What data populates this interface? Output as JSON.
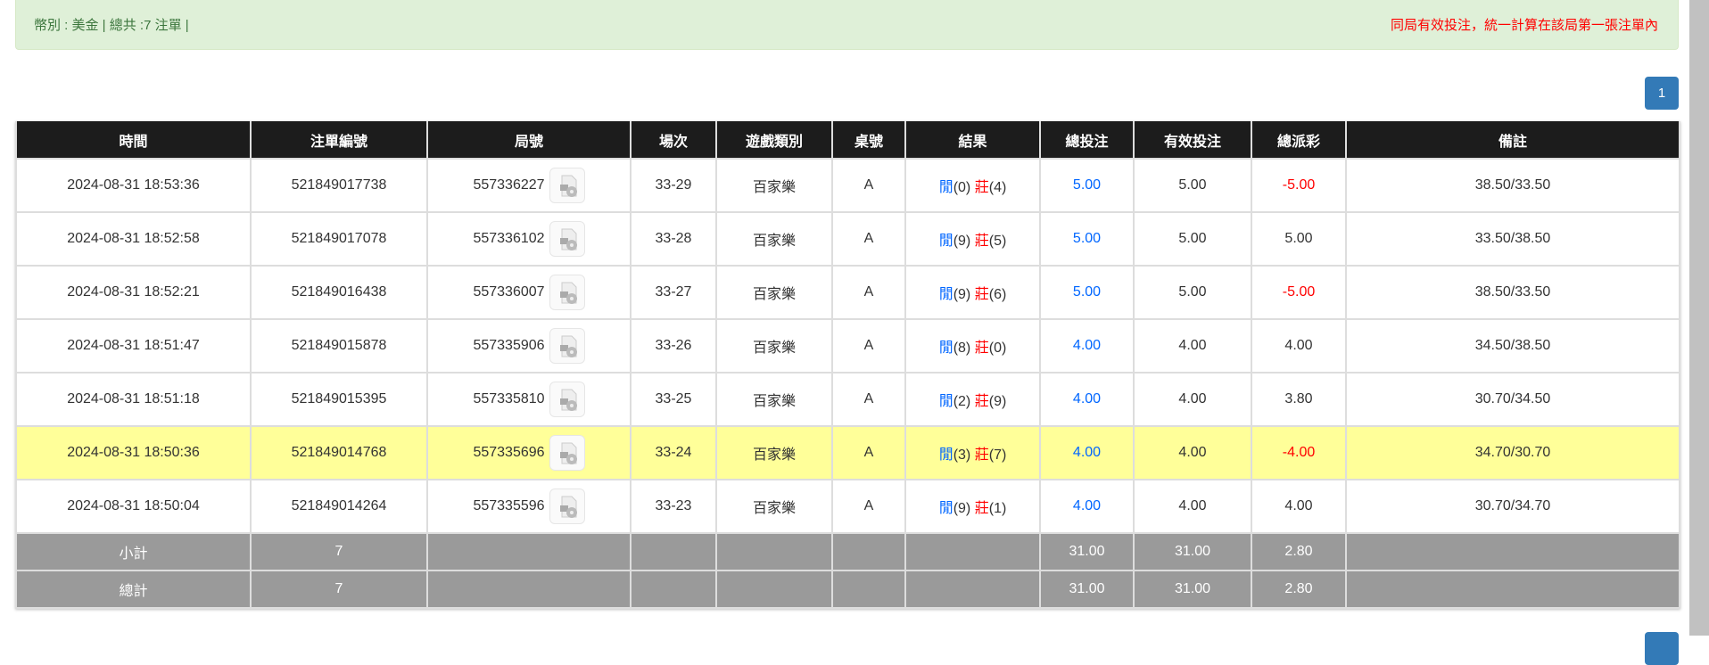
{
  "alert": {
    "summary": "幣別 : 美金 | 總共 :7 注單 |",
    "note": "同局有效投注，統一計算在該局第一張注單內"
  },
  "pagination": {
    "current": "1"
  },
  "colors": {
    "header": "#1c1c1c",
    "highlight": "#ffff99",
    "summary": "#9a9a9a",
    "positive": "#0066ff",
    "negative": "#ff0000"
  },
  "table": {
    "headers": [
      "時間",
      "注單編號",
      "局號",
      "場次",
      "遊戲類別",
      "桌號",
      "結果",
      "總投注",
      "有效投注",
      "總派彩",
      "備註"
    ],
    "rows": [
      {
        "time": "2024-08-31 18:53:36",
        "bet_id": "521849017738",
        "round": "557336227",
        "shoe": "33-29",
        "game": "百家樂",
        "table": "A",
        "player": "閒",
        "player_pts": "(0)",
        "banker": "莊",
        "banker_pts": "(4)",
        "bet": "5.00",
        "valid": "5.00",
        "payout": "-5.00",
        "payout_neg": true,
        "note": "38.50/33.50"
      },
      {
        "time": "2024-08-31 18:52:58",
        "bet_id": "521849017078",
        "round": "557336102",
        "shoe": "33-28",
        "game": "百家樂",
        "table": "A",
        "player": "閒",
        "player_pts": "(9)",
        "banker": "莊",
        "banker_pts": "(5)",
        "bet": "5.00",
        "valid": "5.00",
        "payout": "5.00",
        "payout_neg": false,
        "note": "33.50/38.50"
      },
      {
        "time": "2024-08-31 18:52:21",
        "bet_id": "521849016438",
        "round": "557336007",
        "shoe": "33-27",
        "game": "百家樂",
        "table": "A",
        "player": "閒",
        "player_pts": "(9)",
        "banker": "莊",
        "banker_pts": "(6)",
        "bet": "5.00",
        "valid": "5.00",
        "payout": "-5.00",
        "payout_neg": true,
        "note": "38.50/33.50"
      },
      {
        "time": "2024-08-31 18:51:47",
        "bet_id": "521849015878",
        "round": "557335906",
        "shoe": "33-26",
        "game": "百家樂",
        "table": "A",
        "player": "閒",
        "player_pts": "(8)",
        "banker": "莊",
        "banker_pts": "(0)",
        "bet": "4.00",
        "valid": "4.00",
        "payout": "4.00",
        "payout_neg": false,
        "note": "34.50/38.50"
      },
      {
        "time": "2024-08-31 18:51:18",
        "bet_id": "521849015395",
        "round": "557335810",
        "shoe": "33-25",
        "game": "百家樂",
        "table": "A",
        "player": "閒",
        "player_pts": "(2)",
        "banker": "莊",
        "banker_pts": "(9)",
        "bet": "4.00",
        "valid": "4.00",
        "payout": "3.80",
        "payout_neg": false,
        "note": "30.70/34.50"
      },
      {
        "time": "2024-08-31 18:50:36",
        "bet_id": "521849014768",
        "round": "557335696",
        "shoe": "33-24",
        "game": "百家樂",
        "table": "A",
        "player": "閒",
        "player_pts": "(3)",
        "banker": "莊",
        "banker_pts": "(7)",
        "bet": "4.00",
        "valid": "4.00",
        "payout": "-4.00",
        "payout_neg": true,
        "note": "34.70/30.70",
        "highlight": true
      },
      {
        "time": "2024-08-31 18:50:04",
        "bet_id": "521849014264",
        "round": "557335596",
        "shoe": "33-23",
        "game": "百家樂",
        "table": "A",
        "player": "閒",
        "player_pts": "(9)",
        "banker": "莊",
        "banker_pts": "(1)",
        "bet": "4.00",
        "valid": "4.00",
        "payout": "4.00",
        "payout_neg": false,
        "note": "30.70/34.70"
      }
    ],
    "subtotal": {
      "label": "小計",
      "count": "7",
      "bet": "31.00",
      "valid": "31.00",
      "payout": "2.80"
    },
    "total": {
      "label": "總計",
      "count": "7",
      "bet": "31.00",
      "valid": "31.00",
      "payout": "2.80"
    }
  }
}
